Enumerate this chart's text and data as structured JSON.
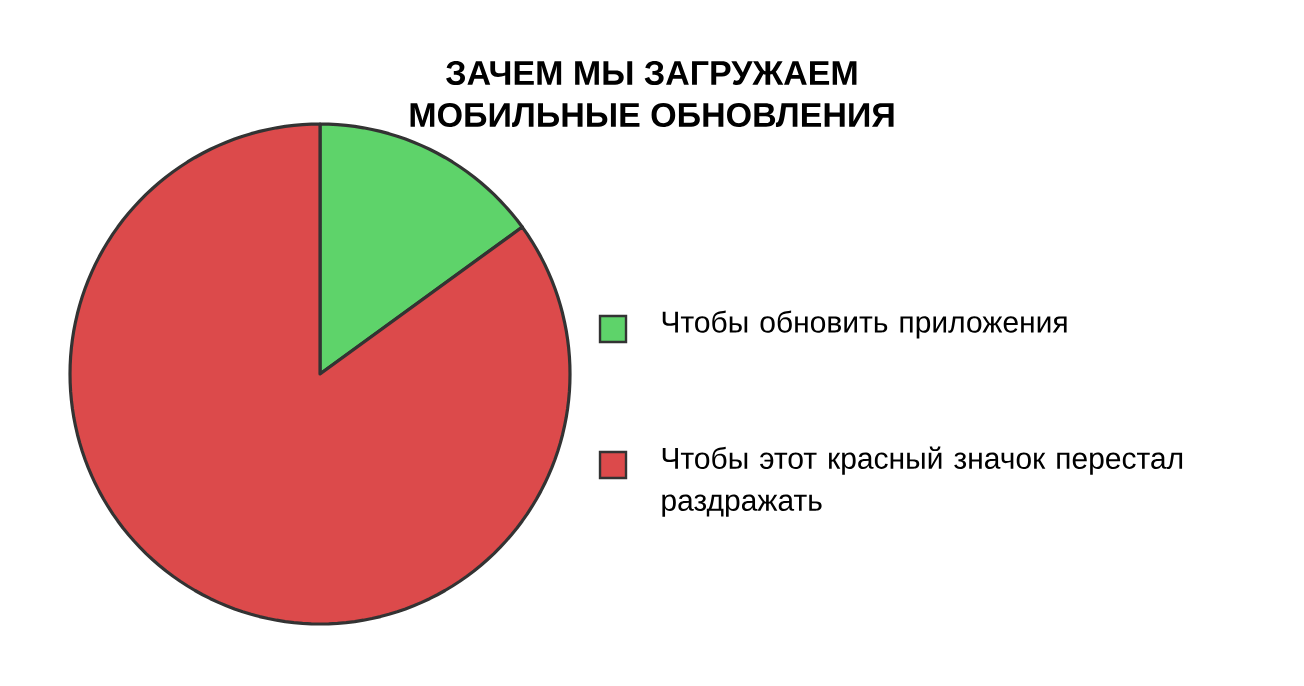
{
  "chart_data": {
    "type": "pie",
    "title": "ЗАЧЕМ МЫ ЗАГРУЖАЕМ\nМОБИЛЬНЫЕ ОБНОВЛЕНИЯ",
    "categories": [
      "Чтобы обновить приложения",
      "Чтобы этот красный значок перестал раздражать"
    ],
    "values": [
      15,
      85
    ],
    "colors": [
      "#5ed36a",
      "#dc4a4b"
    ],
    "legend": "right"
  }
}
